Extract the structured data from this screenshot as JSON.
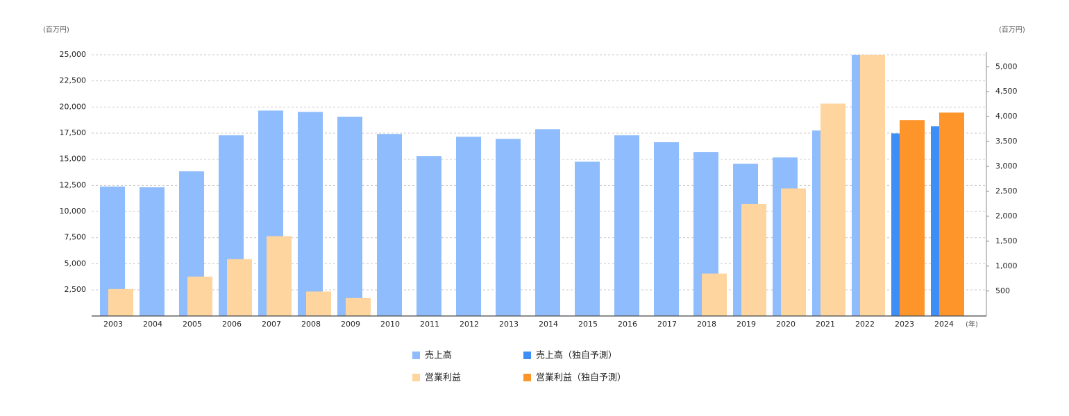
{
  "chart_data": {
    "type": "bar",
    "y_label": "(百万円)",
    "y2_label": "(百万円)",
    "x_label": "(年)",
    "categories": [
      "2003",
      "2004",
      "2005",
      "2006",
      "2007",
      "2008",
      "2009",
      "2010",
      "2011",
      "2012",
      "2013",
      "2014",
      "2015",
      "2016",
      "2017",
      "2018",
      "2019",
      "2020",
      "2021",
      "2022",
      "2023",
      "2024"
    ],
    "series": [
      {
        "name": "売上高",
        "color": "#8fbcfc",
        "values": [
          12380,
          12315,
          13840,
          17290,
          19660,
          19530,
          19060,
          17420,
          15300,
          17150,
          16950,
          17880,
          14770,
          17290,
          16630,
          15700,
          14570,
          15170,
          17750,
          25000,
          null,
          null
        ]
      },
      {
        "name": "売上高（独自予測）",
        "color": "#3d8ef7",
        "values": [
          null,
          null,
          null,
          null,
          null,
          null,
          null,
          null,
          null,
          null,
          null,
          null,
          null,
          null,
          null,
          null,
          null,
          null,
          null,
          null,
          17470,
          18150
        ]
      },
      {
        "name": "営業利益",
        "color": "#fed59e",
        "axis": "y2",
        "values": [
          540,
          null,
          790,
          1140,
          1600,
          490,
          360,
          null,
          null,
          null,
          null,
          null,
          null,
          null,
          null,
          850,
          2250,
          2560,
          4260,
          5240,
          null,
          null
        ]
      },
      {
        "name": "営業利益（独自予測）",
        "color": "#fd952b",
        "axis": "y2",
        "values": [
          null,
          null,
          null,
          null,
          null,
          null,
          null,
          null,
          null,
          null,
          null,
          null,
          null,
          null,
          null,
          null,
          null,
          null,
          null,
          null,
          3930,
          4080
        ]
      }
    ],
    "ylim": [
      0,
      25000
    ],
    "yticks": [
      {
        "value": 2500,
        "label": "2,500"
      },
      {
        "value": 5000,
        "label": "5,000"
      },
      {
        "value": 7500,
        "label": "7,500"
      },
      {
        "value": 10000,
        "label": "10,000"
      },
      {
        "value": 12500,
        "label": "12,500"
      },
      {
        "value": 15000,
        "label": "15,000"
      },
      {
        "value": 17500,
        "label": "17,500"
      },
      {
        "value": 20000,
        "label": "20,000"
      },
      {
        "value": 22500,
        "label": "22,500"
      },
      {
        "value": 25000,
        "label": "25,000"
      }
    ],
    "y2lim": [
      0,
      5240
    ],
    "y2ticks": [
      500,
      {
        "value": 1000,
        "label": "1,000"
      },
      {
        "value": 1500,
        "label": "1,500"
      },
      {
        "value": 2000,
        "label": "2,000"
      },
      {
        "value": 2500,
        "label": "2,500"
      },
      {
        "value": 3000,
        "label": "3,000"
      },
      {
        "value": 3500,
        "label": "3,500"
      },
      {
        "value": 4000,
        "label": "4,000"
      },
      {
        "value": 4500,
        "label": "4,500"
      },
      {
        "value": 5000,
        "label": "5,000"
      }
    ],
    "grid": true,
    "legend": "bottom"
  }
}
